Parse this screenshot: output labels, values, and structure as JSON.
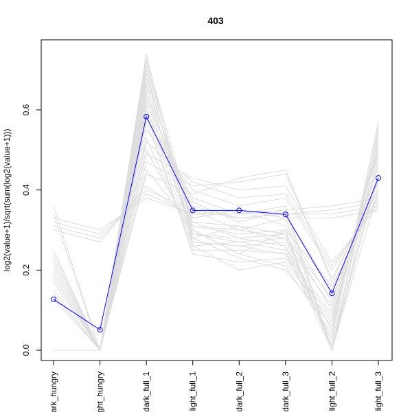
{
  "chart_data": {
    "type": "line",
    "title": "403",
    "xlabel": "",
    "ylabel": "log2(value+1)/sqrt(sum(log2(value+1)))",
    "categories": [
      "dark_hungry",
      "light_hungry",
      "dark_full_1",
      "light_full_1",
      "dark_full_2",
      "dark_full_3",
      "light_full_2",
      "light_full_3"
    ],
    "ylim": [
      -0.02,
      0.78
    ],
    "yticks": [
      0.0,
      0.2,
      0.4,
      0.6
    ],
    "grid": false,
    "highlight_series": {
      "values": [
        0.127,
        0.051,
        0.583,
        0.349,
        0.349,
        0.339,
        0.142,
        0.43
      ],
      "color": "#0000ff"
    },
    "background_series_color": "#dddddd",
    "background_series": [
      {
        "values": [
          0.0,
          0.0,
          0.74,
          0.26,
          0.27,
          0.25,
          0.0,
          0.56
        ]
      },
      {
        "values": [
          0.0,
          0.0,
          0.72,
          0.3,
          0.24,
          0.3,
          0.0,
          0.54
        ]
      },
      {
        "values": [
          0.0,
          0.0,
          0.7,
          0.28,
          0.31,
          0.26,
          0.05,
          0.52
        ]
      },
      {
        "values": [
          0.0,
          0.0,
          0.68,
          0.32,
          0.28,
          0.29,
          0.1,
          0.5
        ]
      },
      {
        "values": [
          0.0,
          0.0,
          0.66,
          0.35,
          0.3,
          0.33,
          0.0,
          0.48
        ]
      },
      {
        "values": [
          0.0,
          0.0,
          0.64,
          0.33,
          0.35,
          0.31,
          0.12,
          0.46
        ]
      },
      {
        "values": [
          0.0,
          0.0,
          0.62,
          0.37,
          0.32,
          0.35,
          0.0,
          0.44
        ]
      },
      {
        "values": [
          0.0,
          0.0,
          0.6,
          0.36,
          0.33,
          0.34,
          0.15,
          0.42
        ]
      },
      {
        "values": [
          0.0,
          0.0,
          0.58,
          0.38,
          0.34,
          0.36,
          0.0,
          0.4
        ]
      },
      {
        "values": [
          0.0,
          0.0,
          0.55,
          0.4,
          0.36,
          0.38,
          0.2,
          0.38
        ]
      },
      {
        "values": [
          0.0,
          0.0,
          0.52,
          0.42,
          0.38,
          0.39,
          0.21,
          0.37
        ]
      },
      {
        "values": [
          0.0,
          0.0,
          0.49,
          0.43,
          0.4,
          0.41,
          0.22,
          0.36
        ]
      },
      {
        "values": [
          0.36,
          0.0,
          0.47,
          0.41,
          0.42,
          0.44,
          0.18,
          0.4
        ]
      },
      {
        "values": [
          0.34,
          0.0,
          0.44,
          0.39,
          0.43,
          0.45,
          0.17,
          0.42
        ]
      },
      {
        "values": [
          0.33,
          0.3,
          0.38,
          0.34,
          0.34,
          0.35,
          0.36,
          0.38
        ]
      },
      {
        "values": [
          0.32,
          0.29,
          0.39,
          0.34,
          0.35,
          0.34,
          0.35,
          0.37
        ]
      },
      {
        "values": [
          0.31,
          0.28,
          0.4,
          0.35,
          0.33,
          0.34,
          0.34,
          0.36
        ]
      },
      {
        "values": [
          0.3,
          0.27,
          0.41,
          0.33,
          0.35,
          0.33,
          0.33,
          0.35
        ]
      },
      {
        "values": [
          0.25,
          0.0,
          0.45,
          0.31,
          0.29,
          0.3,
          0.16,
          0.39
        ]
      },
      {
        "values": [
          0.24,
          0.0,
          0.5,
          0.29,
          0.27,
          0.28,
          0.13,
          0.41
        ]
      },
      {
        "values": [
          0.23,
          0.0,
          0.53,
          0.27,
          0.26,
          0.27,
          0.11,
          0.43
        ]
      },
      {
        "values": [
          0.22,
          0.0,
          0.57,
          0.25,
          0.25,
          0.24,
          0.09,
          0.47
        ]
      },
      {
        "values": [
          0.21,
          0.0,
          0.59,
          0.24,
          0.22,
          0.23,
          0.08,
          0.49
        ]
      },
      {
        "values": [
          0.2,
          0.0,
          0.61,
          0.26,
          0.2,
          0.22,
          0.07,
          0.51
        ]
      },
      {
        "values": [
          0.19,
          0.0,
          0.63,
          0.28,
          0.23,
          0.2,
          0.06,
          0.53
        ]
      },
      {
        "values": [
          0.18,
          0.0,
          0.65,
          0.3,
          0.24,
          0.21,
          0.04,
          0.55
        ]
      },
      {
        "values": [
          0.17,
          0.0,
          0.67,
          0.27,
          0.26,
          0.24,
          0.03,
          0.57
        ]
      },
      {
        "values": [
          0.15,
          0.0,
          0.69,
          0.29,
          0.28,
          0.26,
          0.02,
          0.5
        ]
      },
      {
        "values": [
          0.14,
          0.0,
          0.71,
          0.31,
          0.3,
          0.28,
          0.01,
          0.45
        ]
      },
      {
        "values": [
          0.13,
          0.0,
          0.73,
          0.32,
          0.31,
          0.29,
          0.0,
          0.44
        ]
      }
    ]
  }
}
